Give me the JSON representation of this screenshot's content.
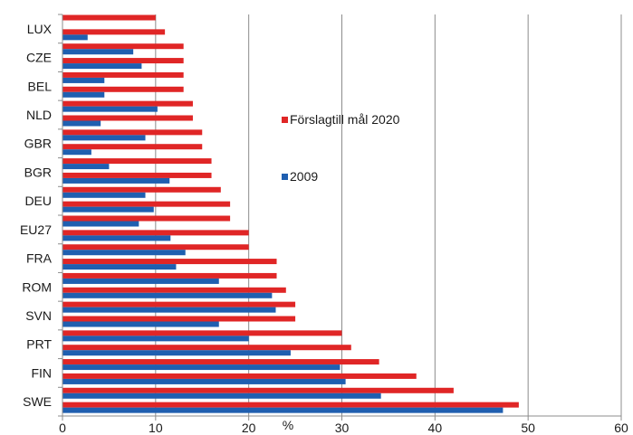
{
  "chart_data": {
    "type": "bar",
    "orientation": "horizontal",
    "x_unit_label": "%",
    "xlim": [
      0,
      60
    ],
    "x_ticks": [
      0,
      10,
      20,
      30,
      40,
      50,
      60
    ],
    "grid": "vertical",
    "legend_position": "right-center",
    "category_labels_shown": [
      "LUX",
      "CZE",
      "BEL",
      "NLD",
      "GBR",
      "BGR",
      "DEU",
      "EU27",
      "FRA",
      "ROM",
      "SVN",
      "PRT",
      "FIN",
      "SWE"
    ],
    "series": [
      {
        "name": "Förslagtill mål 2020",
        "color": "#e02626",
        "values": [
          10,
          11,
          13,
          13,
          13,
          13,
          14,
          14,
          15,
          15,
          16,
          16,
          17,
          18,
          18,
          20,
          20,
          23,
          23,
          24,
          25,
          25,
          30,
          31,
          34,
          38,
          42,
          49
        ]
      },
      {
        "name": "2009",
        "color": "#1f5fb0",
        "values": [
          0,
          2.7,
          7.6,
          8.5,
          4.5,
          4.5,
          10.2,
          4.1,
          8.9,
          3.1,
          5,
          11.5,
          8.9,
          9.8,
          8.2,
          11.6,
          13.2,
          12.2,
          16.8,
          22.5,
          22.9,
          16.8,
          20,
          24.5,
          29.8,
          30.4,
          34.2,
          47.3
        ]
      }
    ]
  }
}
